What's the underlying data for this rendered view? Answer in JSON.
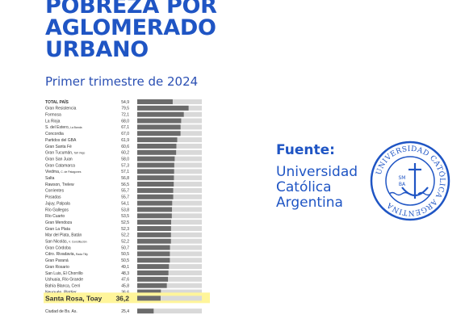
{
  "title_lines": [
    "POBREZA POR",
    "AGLOMERADO",
    "URBANO"
  ],
  "subtitle": "Primer trimestre de 2024",
  "source": {
    "label": "Fuente:",
    "name_lines": [
      "Universidad",
      "Católica",
      "Argentina"
    ]
  },
  "seal": {
    "text": "UNIVERSIDAD CATÓLICA ARGENTINA",
    "initials_top": "SM",
    "initials_bottom": "BA"
  },
  "colors": {
    "title": "#1f55c4",
    "bar": "#6b6b6b",
    "highlight": "#fff59a",
    "track": "#d9d9d9"
  },
  "chart_data": {
    "type": "bar",
    "orientation": "horizontal",
    "title": "POBREZA POR AGLOMERADO URBANO",
    "subtitle": "Primer trimestre de 2024",
    "xlim": [
      0,
      100
    ],
    "highlight_category": "Santa Rosa, Toay",
    "categories": [
      {
        "name": "TOTAL PAÍS",
        "sub": "",
        "value": "54,9",
        "bold": true
      },
      {
        "name": "Gran Resistencia",
        "sub": "",
        "value": "79,5"
      },
      {
        "name": "Formosa",
        "sub": "",
        "value": "72,1"
      },
      {
        "name": "La Rioja",
        "sub": "",
        "value": "68,0"
      },
      {
        "name": "S. del Estero,",
        "sub": "La Banda",
        "value": "67,1"
      },
      {
        "name": "Concordia",
        "sub": "",
        "value": "67,0"
      },
      {
        "name": "Partidos del GBA",
        "sub": "",
        "value": "61,9"
      },
      {
        "name": "Gran Santa Fé",
        "sub": "",
        "value": "60,6"
      },
      {
        "name": "Gran Tucumán,",
        "sub": "Tafí Viejo",
        "value": "60,2"
      },
      {
        "name": "Gran San Juan",
        "sub": "",
        "value": "58,0"
      },
      {
        "name": "Gran Catamarca",
        "sub": "",
        "value": "57,3"
      },
      {
        "name": "Viedma,",
        "sub": "C. de Patagones",
        "value": "57,1"
      },
      {
        "name": "Salta",
        "sub": "",
        "value": "56,8"
      },
      {
        "name": "Rawson, Trelew",
        "sub": "",
        "value": "56,5"
      },
      {
        "name": "Corrientes",
        "sub": "",
        "value": "55,7"
      },
      {
        "name": "Posadas",
        "sub": "",
        "value": "55,7"
      },
      {
        "name": "Jujuy, Palpala",
        "sub": "",
        "value": "54,1"
      },
      {
        "name": "Río Gallegos",
        "sub": "",
        "value": "53,8"
      },
      {
        "name": "Río Cuarto",
        "sub": "",
        "value": "53,5"
      },
      {
        "name": "Gran Mendoza",
        "sub": "",
        "value": "52,5"
      },
      {
        "name": "Gran La Plata",
        "sub": "",
        "value": "52,3"
      },
      {
        "name": "Mar del Plata, Batán",
        "sub": "",
        "value": "52,2"
      },
      {
        "name": "San Nicolás,",
        "sub": "V. Constitución",
        "value": "52,2"
      },
      {
        "name": "Gran Córdoba",
        "sub": "",
        "value": "50,7"
      },
      {
        "name": "Cdro. Rivadavia,",
        "sub": "Rada Tilly",
        "value": "50,5"
      },
      {
        "name": "Gran Paraná",
        "sub": "",
        "value": "50,5"
      },
      {
        "name": "Gran Rosario",
        "sub": "",
        "value": "49,1"
      },
      {
        "name": "San Luis, El Chorrillo",
        "sub": "",
        "value": "48,3"
      },
      {
        "name": "Ushuaia, Río Grande",
        "sub": "",
        "value": "47,6"
      },
      {
        "name": "Bahía Blanca, Cerri",
        "sub": "",
        "value": "45,8"
      },
      {
        "name": "Neuquén, Plottier",
        "sub": "",
        "value": "36,6"
      },
      {
        "name": "Santa Rosa, Toay",
        "sub": "",
        "value": "36,2",
        "highlight": true
      },
      {
        "name": "Ciudad de Bs. As.",
        "sub": "",
        "value": "25,4"
      }
    ]
  }
}
